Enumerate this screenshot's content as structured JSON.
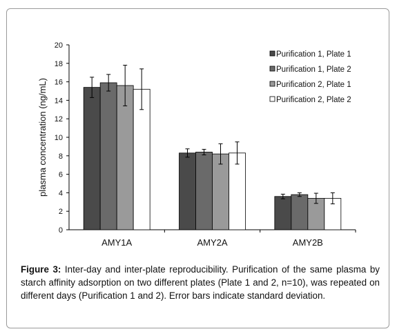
{
  "caption": {
    "label": "Figure 3:",
    "text": "Inter-day and inter-plate reproducibility. Purification of the same plasma by starch affinity adsorption on two different plates (Plate 1 and 2, n=10), was repeated on different days (Purification 1 and 2). Error bars indicate standard deviation."
  },
  "chart_data": {
    "type": "bar",
    "title": "",
    "xlabel": "",
    "ylabel": "plasma concentration (ng/mL)",
    "ylim": [
      0,
      20
    ],
    "yticks": [
      0,
      2,
      4,
      6,
      8,
      10,
      12,
      14,
      16,
      18,
      20
    ],
    "grid": false,
    "legend_position": "top-right",
    "categories": [
      "AMY1A",
      "AMY2A",
      "AMY2B"
    ],
    "series": [
      {
        "name": "Purification 1, Plate 1",
        "color": "#4a4a4a",
        "values": [
          15.4,
          8.3,
          3.6
        ],
        "errors": [
          1.1,
          0.45,
          0.25
        ]
      },
      {
        "name": "Purification 1, Plate 2",
        "color": "#6a6a6a",
        "values": [
          15.9,
          8.4,
          3.8
        ],
        "errors": [
          0.9,
          0.3,
          0.2
        ]
      },
      {
        "name": "Purification 2, Plate 1",
        "color": "#9a9a9a",
        "values": [
          15.6,
          8.2,
          3.4
        ],
        "errors": [
          2.2,
          1.1,
          0.55
        ]
      },
      {
        "name": "Purification 2, Plate 2",
        "color": "#ffffff",
        "values": [
          15.2,
          8.3,
          3.4
        ],
        "errors": [
          2.2,
          1.2,
          0.6
        ]
      }
    ]
  }
}
